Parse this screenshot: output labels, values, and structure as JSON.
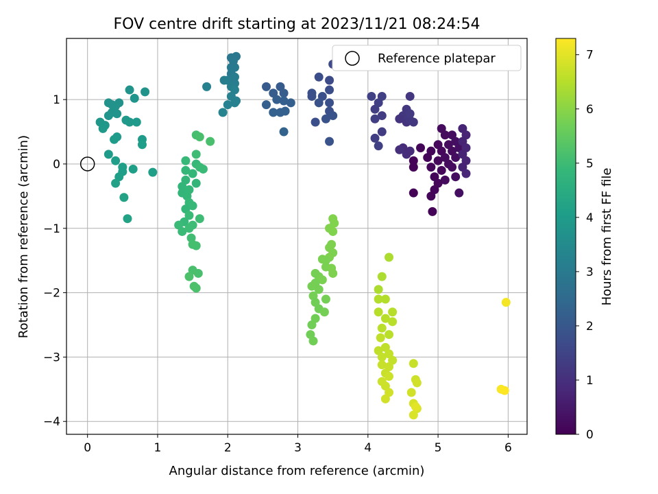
{
  "chart_data": {
    "type": "scatter",
    "title": "FOV centre drift starting at 2023/11/21 08:24:54",
    "xlabel": "Angular distance from reference (arcmin)",
    "ylabel": "Rotation from reference (arcmin)",
    "xlim": [
      -0.3,
      6.27
    ],
    "ylim": [
      -4.2,
      1.95
    ],
    "xticks": [
      0,
      1,
      2,
      3,
      4,
      5,
      6
    ],
    "yticks": [
      -4,
      -3,
      -2,
      -1,
      0,
      1
    ],
    "grid": true,
    "legend": {
      "position": "top-right",
      "entries": [
        "Reference platepar"
      ]
    },
    "reference_point": {
      "x": 0,
      "y": 0
    },
    "colorbar": {
      "label": "Hours from first FF file",
      "range": [
        0,
        7.3
      ],
      "ticks": [
        0,
        1,
        2,
        3,
        4,
        5,
        6,
        7
      ],
      "colormap": "viridis"
    },
    "points": [
      {
        "x": 5.05,
        "y": 0.55,
        "t": 0.2
      },
      {
        "x": 5.1,
        "y": 0.45,
        "t": 0.2
      },
      {
        "x": 5.2,
        "y": 0.45,
        "t": 0.25
      },
      {
        "x": 5.0,
        "y": 0.3,
        "t": 0.15
      },
      {
        "x": 5.15,
        "y": 0.3,
        "t": 0.2
      },
      {
        "x": 5.25,
        "y": 0.35,
        "t": 0.3
      },
      {
        "x": 4.9,
        "y": 0.2,
        "t": 0.1
      },
      {
        "x": 5.05,
        "y": 0.2,
        "t": 0.15
      },
      {
        "x": 5.2,
        "y": 0.2,
        "t": 0.2
      },
      {
        "x": 5.3,
        "y": 0.25,
        "t": 0.3
      },
      {
        "x": 4.75,
        "y": 0.25,
        "t": 0.1
      },
      {
        "x": 4.85,
        "y": 0.1,
        "t": 0.1
      },
      {
        "x": 5.0,
        "y": 0.05,
        "t": 0.15
      },
      {
        "x": 5.1,
        "y": 0.1,
        "t": 0.2
      },
      {
        "x": 5.25,
        "y": 0.1,
        "t": 0.25
      },
      {
        "x": 4.65,
        "y": 0.05,
        "t": 0.05
      },
      {
        "x": 4.65,
        "y": -0.05,
        "t": 0.05
      },
      {
        "x": 4.9,
        "y": -0.05,
        "t": 0.1
      },
      {
        "x": 5.05,
        "y": -0.1,
        "t": 0.15
      },
      {
        "x": 5.2,
        "y": -0.05,
        "t": 0.2
      },
      {
        "x": 4.95,
        "y": -0.2,
        "t": 0.1
      },
      {
        "x": 5.1,
        "y": -0.25,
        "t": 0.2
      },
      {
        "x": 5.25,
        "y": -0.2,
        "t": 0.25
      },
      {
        "x": 5.0,
        "y": -0.3,
        "t": 0.15
      },
      {
        "x": 4.95,
        "y": -0.4,
        "t": 0.1
      },
      {
        "x": 4.9,
        "y": -0.5,
        "t": 0.1
      },
      {
        "x": 4.65,
        "y": -0.45,
        "t": 0.05
      },
      {
        "x": 4.92,
        "y": -0.74,
        "t": 0.05
      },
      {
        "x": 5.3,
        "y": -0.45,
        "t": 0.3
      },
      {
        "x": 5.15,
        "y": 0.0,
        "t": 0.2
      },
      {
        "x": 5.35,
        "y": 0.55,
        "t": 0.7
      },
      {
        "x": 5.4,
        "y": 0.45,
        "t": 0.75
      },
      {
        "x": 5.35,
        "y": 0.35,
        "t": 0.7
      },
      {
        "x": 5.4,
        "y": 0.25,
        "t": 0.75
      },
      {
        "x": 5.35,
        "y": 0.15,
        "t": 0.7
      },
      {
        "x": 5.4,
        "y": 0.05,
        "t": 0.75
      },
      {
        "x": 5.35,
        "y": -0.05,
        "t": 0.7
      },
      {
        "x": 5.4,
        "y": -0.15,
        "t": 0.8
      },
      {
        "x": 4.5,
        "y": 0.25,
        "t": 0.9
      },
      {
        "x": 4.55,
        "y": 0.15,
        "t": 0.95
      },
      {
        "x": 4.6,
        "y": 0.2,
        "t": 0.9
      },
      {
        "x": 4.45,
        "y": 0.22,
        "t": 1.0
      },
      {
        "x": 4.55,
        "y": 0.65,
        "t": 1.1
      },
      {
        "x": 4.5,
        "y": 0.75,
        "t": 1.2
      },
      {
        "x": 4.6,
        "y": 0.68,
        "t": 1.2
      },
      {
        "x": 4.6,
        "y": 1.05,
        "t": 1.15
      },
      {
        "x": 4.55,
        "y": 0.85,
        "t": 1.2
      },
      {
        "x": 4.45,
        "y": 0.7,
        "t": 1.1
      },
      {
        "x": 4.6,
        "y": 0.78,
        "t": 1.25
      },
      {
        "x": 4.65,
        "y": 0.65,
        "t": 1.2
      },
      {
        "x": 4.2,
        "y": 0.5,
        "t": 1.3
      },
      {
        "x": 4.1,
        "y": 0.4,
        "t": 1.35
      },
      {
        "x": 4.15,
        "y": 0.28,
        "t": 1.4
      },
      {
        "x": 4.2,
        "y": 0.75,
        "t": 1.3
      },
      {
        "x": 4.1,
        "y": 0.85,
        "t": 1.35
      },
      {
        "x": 4.15,
        "y": 0.95,
        "t": 1.4
      },
      {
        "x": 4.05,
        "y": 1.05,
        "t": 1.45
      },
      {
        "x": 4.2,
        "y": 1.05,
        "t": 1.4
      },
      {
        "x": 4.1,
        "y": 0.7,
        "t": 1.35
      },
      {
        "x": 3.45,
        "y": 1.3,
        "t": 1.7
      },
      {
        "x": 3.5,
        "y": 1.55,
        "t": 1.65
      },
      {
        "x": 3.3,
        "y": 1.35,
        "t": 1.75
      },
      {
        "x": 3.2,
        "y": 1.1,
        "t": 1.8
      },
      {
        "x": 3.35,
        "y": 1.05,
        "t": 1.8
      },
      {
        "x": 3.3,
        "y": 0.95,
        "t": 1.85
      },
      {
        "x": 3.45,
        "y": 1.15,
        "t": 1.75
      },
      {
        "x": 3.45,
        "y": 0.95,
        "t": 1.8
      },
      {
        "x": 3.45,
        "y": 0.82,
        "t": 1.8
      },
      {
        "x": 3.5,
        "y": 0.75,
        "t": 1.85
      },
      {
        "x": 3.25,
        "y": 0.65,
        "t": 1.8
      },
      {
        "x": 3.4,
        "y": 0.7,
        "t": 1.85
      },
      {
        "x": 3.45,
        "y": 0.35,
        "t": 1.9
      },
      {
        "x": 3.2,
        "y": 1.05,
        "t": 1.8
      },
      {
        "x": 2.55,
        "y": 1.2,
        "t": 2.1
      },
      {
        "x": 2.75,
        "y": 1.2,
        "t": 2.1
      },
      {
        "x": 2.65,
        "y": 1.1,
        "t": 2.15
      },
      {
        "x": 2.8,
        "y": 1.1,
        "t": 2.15
      },
      {
        "x": 2.7,
        "y": 1.0,
        "t": 2.2
      },
      {
        "x": 2.8,
        "y": 0.98,
        "t": 2.2
      },
      {
        "x": 2.55,
        "y": 0.92,
        "t": 2.2
      },
      {
        "x": 2.65,
        "y": 0.8,
        "t": 2.25
      },
      {
        "x": 2.75,
        "y": 0.8,
        "t": 2.25
      },
      {
        "x": 2.82,
        "y": 0.82,
        "t": 2.25
      },
      {
        "x": 2.8,
        "y": 0.5,
        "t": 2.3
      },
      {
        "x": 2.9,
        "y": 0.95,
        "t": 2.2
      },
      {
        "x": 2.05,
        "y": 1.65,
        "t": 2.9
      },
      {
        "x": 2.12,
        "y": 1.67,
        "t": 2.9
      },
      {
        "x": 2.05,
        "y": 1.5,
        "t": 3.0
      },
      {
        "x": 2.1,
        "y": 1.5,
        "t": 3.0
      },
      {
        "x": 2.05,
        "y": 1.4,
        "t": 3.0
      },
      {
        "x": 2.1,
        "y": 1.35,
        "t": 3.05
      },
      {
        "x": 2.0,
        "y": 1.3,
        "t": 3.1
      },
      {
        "x": 2.1,
        "y": 1.25,
        "t": 3.1
      },
      {
        "x": 1.95,
        "y": 1.3,
        "t": 3.15
      },
      {
        "x": 2.05,
        "y": 1.2,
        "t": 3.15
      },
      {
        "x": 2.1,
        "y": 1.15,
        "t": 3.2
      },
      {
        "x": 2.05,
        "y": 1.05,
        "t": 3.2
      },
      {
        "x": 2.1,
        "y": 0.95,
        "t": 3.25
      },
      {
        "x": 2.0,
        "y": 0.92,
        "t": 3.25
      },
      {
        "x": 1.93,
        "y": 0.8,
        "t": 3.3
      },
      {
        "x": 1.7,
        "y": 1.2,
        "t": 3.2
      },
      {
        "x": 2.12,
        "y": 0.98,
        "t": 3.2
      },
      {
        "x": 2.08,
        "y": 1.6,
        "t": 2.95
      },
      {
        "x": 0.3,
        "y": 0.95,
        "t": 3.7
      },
      {
        "x": 0.35,
        "y": 0.92,
        "t": 3.7
      },
      {
        "x": 0.4,
        "y": 0.9,
        "t": 3.75
      },
      {
        "x": 0.45,
        "y": 0.95,
        "t": 3.7
      },
      {
        "x": 0.35,
        "y": 0.8,
        "t": 3.75
      },
      {
        "x": 0.3,
        "y": 0.75,
        "t": 3.8
      },
      {
        "x": 0.42,
        "y": 0.78,
        "t": 3.8
      },
      {
        "x": 0.6,
        "y": 1.15,
        "t": 3.75
      },
      {
        "x": 0.67,
        "y": 1.02,
        "t": 3.8
      },
      {
        "x": 0.82,
        "y": 1.12,
        "t": 3.75
      },
      {
        "x": 0.18,
        "y": 0.65,
        "t": 3.85
      },
      {
        "x": 0.25,
        "y": 0.6,
        "t": 3.85
      },
      {
        "x": 0.22,
        "y": 0.55,
        "t": 3.9
      },
      {
        "x": 0.55,
        "y": 0.68,
        "t": 3.9
      },
      {
        "x": 0.6,
        "y": 0.65,
        "t": 3.9
      },
      {
        "x": 0.7,
        "y": 0.65,
        "t": 3.95
      },
      {
        "x": 0.42,
        "y": 0.42,
        "t": 3.95
      },
      {
        "x": 0.38,
        "y": 0.38,
        "t": 4.0
      },
      {
        "x": 0.78,
        "y": 0.38,
        "t": 4.0
      },
      {
        "x": 0.78,
        "y": 0.3,
        "t": 4.05
      },
      {
        "x": 0.3,
        "y": 0.15,
        "t": 4.0
      },
      {
        "x": 0.4,
        "y": 0.05,
        "t": 4.05
      },
      {
        "x": 0.5,
        "y": -0.05,
        "t": 4.1
      },
      {
        "x": 0.5,
        "y": -0.12,
        "t": 4.1
      },
      {
        "x": 0.65,
        "y": -0.08,
        "t": 4.1
      },
      {
        "x": 0.93,
        "y": -0.13,
        "t": 4.1
      },
      {
        "x": 0.45,
        "y": -0.2,
        "t": 4.1
      },
      {
        "x": 0.4,
        "y": -0.3,
        "t": 4.15
      },
      {
        "x": 0.52,
        "y": -0.52,
        "t": 4.2
      },
      {
        "x": 0.57,
        "y": -0.85,
        "t": 4.2
      },
      {
        "x": 1.55,
        "y": 0.45,
        "t": 5.1
      },
      {
        "x": 1.6,
        "y": 0.42,
        "t": 5.15
      },
      {
        "x": 1.75,
        "y": 0.35,
        "t": 5.15
      },
      {
        "x": 1.55,
        "y": 0.15,
        "t": 5.0
      },
      {
        "x": 1.4,
        "y": 0.05,
        "t": 4.9
      },
      {
        "x": 1.55,
        "y": 0.0,
        "t": 4.9
      },
      {
        "x": 1.6,
        "y": -0.05,
        "t": 4.95
      },
      {
        "x": 1.65,
        "y": -0.08,
        "t": 4.95
      },
      {
        "x": 1.4,
        "y": -0.1,
        "t": 4.85
      },
      {
        "x": 1.5,
        "y": -0.15,
        "t": 4.85
      },
      {
        "x": 1.4,
        "y": -0.25,
        "t": 4.8
      },
      {
        "x": 1.55,
        "y": -0.3,
        "t": 4.8
      },
      {
        "x": 1.35,
        "y": -0.35,
        "t": 4.8
      },
      {
        "x": 1.45,
        "y": -0.4,
        "t": 4.85
      },
      {
        "x": 1.35,
        "y": -0.45,
        "t": 4.8
      },
      {
        "x": 1.42,
        "y": -0.5,
        "t": 4.85
      },
      {
        "x": 1.45,
        "y": -0.6,
        "t": 4.9
      },
      {
        "x": 1.4,
        "y": -0.7,
        "t": 4.85
      },
      {
        "x": 1.5,
        "y": -0.65,
        "t": 4.9
      },
      {
        "x": 1.45,
        "y": -0.8,
        "t": 4.95
      },
      {
        "x": 1.38,
        "y": -0.9,
        "t": 4.9
      },
      {
        "x": 1.3,
        "y": -0.95,
        "t": 4.95
      },
      {
        "x": 1.35,
        "y": -1.05,
        "t": 4.95
      },
      {
        "x": 1.45,
        "y": -1.0,
        "t": 5.0
      },
      {
        "x": 1.5,
        "y": -0.95,
        "t": 5.0
      },
      {
        "x": 1.6,
        "y": -0.85,
        "t": 5.0
      },
      {
        "x": 1.48,
        "y": -1.15,
        "t": 5.05
      },
      {
        "x": 1.5,
        "y": -1.25,
        "t": 5.1
      },
      {
        "x": 1.55,
        "y": -1.27,
        "t": 5.1
      },
      {
        "x": 1.5,
        "y": -1.65,
        "t": 5.15
      },
      {
        "x": 1.58,
        "y": -1.7,
        "t": 5.15
      },
      {
        "x": 1.45,
        "y": -1.75,
        "t": 5.2
      },
      {
        "x": 1.52,
        "y": -1.9,
        "t": 5.2
      },
      {
        "x": 1.55,
        "y": -1.93,
        "t": 5.2
      },
      {
        "x": 3.5,
        "y": -0.85,
        "t": 5.9
      },
      {
        "x": 3.52,
        "y": -0.92,
        "t": 5.9
      },
      {
        "x": 3.5,
        "y": -1.05,
        "t": 5.9
      },
      {
        "x": 3.48,
        "y": -1.25,
        "t": 5.85
      },
      {
        "x": 3.45,
        "y": -1.3,
        "t": 5.85
      },
      {
        "x": 3.5,
        "y": -1.38,
        "t": 5.85
      },
      {
        "x": 3.45,
        "y": -1.45,
        "t": 5.85
      },
      {
        "x": 3.4,
        "y": -1.5,
        "t": 5.8
      },
      {
        "x": 3.35,
        "y": -1.48,
        "t": 5.8
      },
      {
        "x": 3.4,
        "y": -1.6,
        "t": 5.8
      },
      {
        "x": 3.48,
        "y": -1.62,
        "t": 5.85
      },
      {
        "x": 3.3,
        "y": -1.75,
        "t": 5.8
      },
      {
        "x": 3.35,
        "y": -1.8,
        "t": 5.8
      },
      {
        "x": 3.25,
        "y": -1.7,
        "t": 5.75
      },
      {
        "x": 3.2,
        "y": -1.9,
        "t": 5.75
      },
      {
        "x": 3.25,
        "y": -1.85,
        "t": 5.75
      },
      {
        "x": 3.3,
        "y": -1.95,
        "t": 5.75
      },
      {
        "x": 3.22,
        "y": -2.05,
        "t": 5.75
      },
      {
        "x": 3.25,
        "y": -2.15,
        "t": 5.7
      },
      {
        "x": 3.3,
        "y": -2.25,
        "t": 5.7
      },
      {
        "x": 3.4,
        "y": -2.1,
        "t": 5.75
      },
      {
        "x": 3.38,
        "y": -2.3,
        "t": 5.75
      },
      {
        "x": 3.25,
        "y": -2.4,
        "t": 5.7
      },
      {
        "x": 3.2,
        "y": -2.5,
        "t": 5.7
      },
      {
        "x": 3.18,
        "y": -2.65,
        "t": 5.7
      },
      {
        "x": 3.22,
        "y": -2.75,
        "t": 5.7
      },
      {
        "x": 3.5,
        "y": -1.7,
        "t": 5.85
      },
      {
        "x": 3.45,
        "y": -1.0,
        "t": 5.9
      },
      {
        "x": 4.3,
        "y": -1.45,
        "t": 6.4
      },
      {
        "x": 4.2,
        "y": -1.75,
        "t": 6.4
      },
      {
        "x": 4.15,
        "y": -1.95,
        "t": 6.4
      },
      {
        "x": 4.15,
        "y": -2.1,
        "t": 6.45
      },
      {
        "x": 4.25,
        "y": -2.1,
        "t": 6.45
      },
      {
        "x": 4.35,
        "y": -2.3,
        "t": 6.5
      },
      {
        "x": 4.15,
        "y": -2.3,
        "t": 6.5
      },
      {
        "x": 4.25,
        "y": -2.4,
        "t": 6.5
      },
      {
        "x": 4.35,
        "y": -2.45,
        "t": 6.55
      },
      {
        "x": 4.2,
        "y": -2.55,
        "t": 6.55
      },
      {
        "x": 4.18,
        "y": -2.7,
        "t": 6.6
      },
      {
        "x": 4.3,
        "y": -2.65,
        "t": 6.55
      },
      {
        "x": 4.15,
        "y": -2.9,
        "t": 6.6
      },
      {
        "x": 4.25,
        "y": -2.85,
        "t": 6.6
      },
      {
        "x": 4.3,
        "y": -2.95,
        "t": 6.65
      },
      {
        "x": 4.2,
        "y": -3.0,
        "t": 6.65
      },
      {
        "x": 4.35,
        "y": -3.05,
        "t": 6.65
      },
      {
        "x": 4.2,
        "y": -3.12,
        "t": 6.7
      },
      {
        "x": 4.3,
        "y": -3.15,
        "t": 6.7
      },
      {
        "x": 4.25,
        "y": -3.25,
        "t": 6.7
      },
      {
        "x": 4.3,
        "y": -3.3,
        "t": 6.75
      },
      {
        "x": 4.2,
        "y": -3.38,
        "t": 6.75
      },
      {
        "x": 4.25,
        "y": -3.45,
        "t": 6.75
      },
      {
        "x": 4.3,
        "y": -3.55,
        "t": 6.8
      },
      {
        "x": 4.25,
        "y": -3.65,
        "t": 6.8
      },
      {
        "x": 4.65,
        "y": -3.1,
        "t": 6.7
      },
      {
        "x": 4.68,
        "y": -3.35,
        "t": 6.75
      },
      {
        "x": 4.7,
        "y": -3.4,
        "t": 6.8
      },
      {
        "x": 4.62,
        "y": -3.55,
        "t": 6.8
      },
      {
        "x": 4.65,
        "y": -3.72,
        "t": 6.85
      },
      {
        "x": 4.7,
        "y": -3.8,
        "t": 6.9
      },
      {
        "x": 4.65,
        "y": -3.9,
        "t": 6.9
      },
      {
        "x": 4.68,
        "y": -3.77,
        "t": 7.0
      },
      {
        "x": 5.97,
        "y": -2.15,
        "t": 7.2
      },
      {
        "x": 5.9,
        "y": -3.5,
        "t": 7.25
      },
      {
        "x": 5.95,
        "y": -3.52,
        "t": 7.3
      }
    ]
  }
}
